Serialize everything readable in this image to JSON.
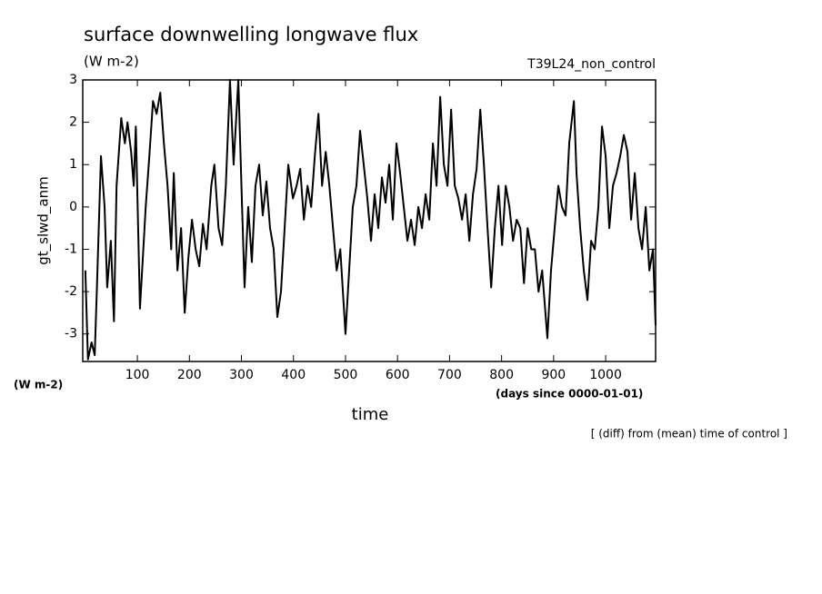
{
  "chart_data": {
    "type": "line",
    "title": "surface downwelling longwave flux",
    "units_top": "(W m-2)",
    "run_label": "T39L24_non_control",
    "ylabel": "gt_slwd_anm",
    "units_bottom": "(W m-2)",
    "x_units": "(days since 0000-01-01)",
    "xlabel": "time",
    "note": "[ (diff) from (mean) time of control ]",
    "color": "#000000",
    "x": [
      0,
      5,
      12,
      18,
      22,
      30,
      37,
      42,
      49,
      55,
      60,
      69,
      76,
      81,
      88,
      93,
      97,
      105,
      116,
      123,
      130,
      137,
      144,
      151,
      158,
      165,
      170,
      177,
      184,
      191,
      198,
      205,
      212,
      219,
      226,
      233,
      242,
      248,
      256,
      263,
      270,
      278,
      285,
      294,
      300,
      306,
      313,
      320,
      327,
      334,
      341,
      348,
      355,
      362,
      369,
      376,
      383,
      390,
      399,
      406,
      413,
      420,
      427,
      434,
      441,
      448,
      455,
      462,
      469,
      476,
      483,
      490,
      500,
      507,
      514,
      521,
      528,
      535,
      542,
      549,
      556,
      563,
      570,
      577,
      584,
      591,
      598,
      605,
      612,
      619,
      626,
      633,
      640,
      647,
      654,
      661,
      668,
      675,
      682,
      689,
      696,
      703,
      710,
      717,
      724,
      731,
      738,
      745,
      752,
      759,
      766,
      773,
      780,
      787,
      794,
      801,
      808,
      815,
      822,
      829,
      836,
      843,
      850,
      857,
      864,
      871,
      878,
      888,
      895,
      902,
      909,
      916,
      923,
      930,
      939,
      944,
      951,
      958,
      965,
      972,
      979,
      986,
      993,
      1000,
      1007,
      1014,
      1021,
      1028,
      1035,
      1042,
      1049,
      1056,
      1063,
      1070,
      1077,
      1084,
      1091,
      1096
    ],
    "values": [
      -1.5,
      -3.6,
      -3.2,
      -3.5,
      -2.0,
      1.2,
      0,
      -1.9,
      -0.8,
      -2.7,
      0.5,
      2.1,
      1.5,
      2.0,
      1.3,
      0.5,
      1.9,
      -2.4,
      0,
      1.2,
      2.5,
      2.2,
      2.7,
      1.5,
      0.5,
      -1.0,
      0.8,
      -1.5,
      -0.5,
      -2.5,
      -1.2,
      -0.3,
      -1.0,
      -1.4,
      -0.4,
      -1.0,
      0.5,
      1.0,
      -0.5,
      -0.9,
      0.5,
      3.0,
      1.0,
      3.0,
      0.5,
      -1.9,
      0,
      -1.3,
      0.5,
      1.0,
      -0.2,
      0.6,
      -0.5,
      -1.0,
      -2.6,
      -2.0,
      -0.5,
      1.0,
      0.2,
      0.5,
      0.9,
      -0.3,
      0.5,
      0.0,
      1.2,
      2.2,
      0.5,
      1.3,
      0.5,
      -0.5,
      -1.5,
      -1.0,
      -3.0,
      -1.5,
      0.0,
      0.5,
      1.8,
      1.0,
      0.2,
      -0.8,
      0.3,
      -0.5,
      0.7,
      0.1,
      1.0,
      -0.3,
      1.5,
      0.8,
      0.0,
      -0.8,
      -0.3,
      -0.9,
      0.0,
      -0.5,
      0.3,
      -0.3,
      1.5,
      0.5,
      2.6,
      1.0,
      0.5,
      2.3,
      0.5,
      0.2,
      -0.3,
      0.3,
      -0.8,
      0.3,
      0.9,
      2.3,
      1.0,
      -0.5,
      -1.9,
      -0.5,
      0.5,
      -0.9,
      0.5,
      0.0,
      -0.8,
      -0.3,
      -0.5,
      -1.8,
      -0.5,
      -1.0,
      -1.0,
      -2.0,
      -1.5,
      -3.1,
      -1.5,
      -0.5,
      0.5,
      0.0,
      -0.2,
      1.5,
      2.5,
      0.8,
      -0.5,
      -1.5,
      -2.2,
      -0.8,
      -1.0,
      0.0,
      1.9,
      1.2,
      -0.5,
      0.5,
      0.8,
      1.2,
      1.7,
      1.3,
      -0.3,
      0.8,
      -0.5,
      -1.0,
      0.0,
      -1.5,
      -1.0,
      -2.8
    ],
    "xlim": [
      -5,
      1096
    ],
    "xticks": [
      100,
      200,
      300,
      400,
      500,
      600,
      700,
      800,
      900,
      1000
    ],
    "ylim": [
      -3.65,
      3
    ],
    "yticks": [
      -3,
      -2,
      -1,
      0,
      1,
      2,
      3
    ]
  }
}
